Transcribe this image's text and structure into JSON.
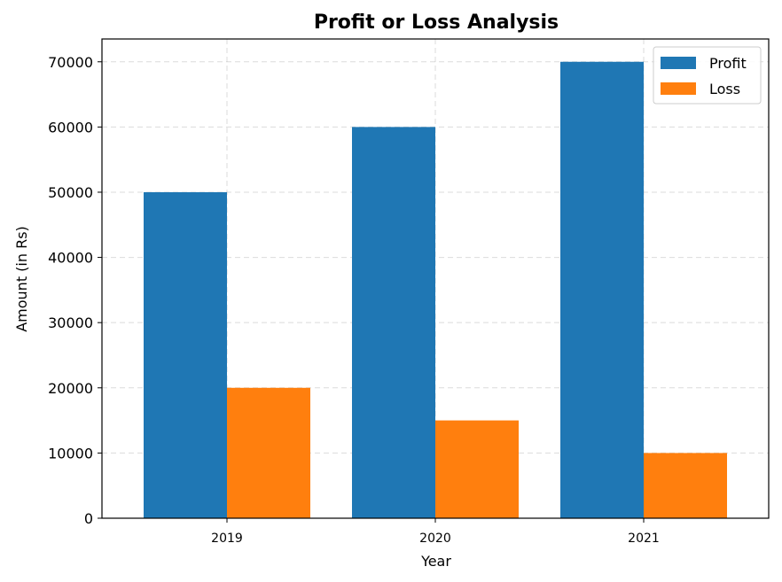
{
  "chart_data": {
    "type": "bar",
    "title": "Profit or Loss Analysis",
    "xlabel": "Year",
    "ylabel": "Amount (in Rs)",
    "categories": [
      "2019",
      "2020",
      "2021"
    ],
    "series": [
      {
        "name": "Profit",
        "values": [
          50000,
          60000,
          70000
        ],
        "color": "#1f77b4"
      },
      {
        "name": "Loss",
        "values": [
          20000,
          15000,
          10000
        ],
        "color": "#ff7f0e"
      }
    ],
    "ylim": [
      0,
      73500
    ],
    "yticks": [
      "0",
      "10000",
      "20000",
      "30000",
      "40000",
      "50000",
      "60000",
      "70000"
    ],
    "grid": true,
    "legend_position": "upper right"
  }
}
